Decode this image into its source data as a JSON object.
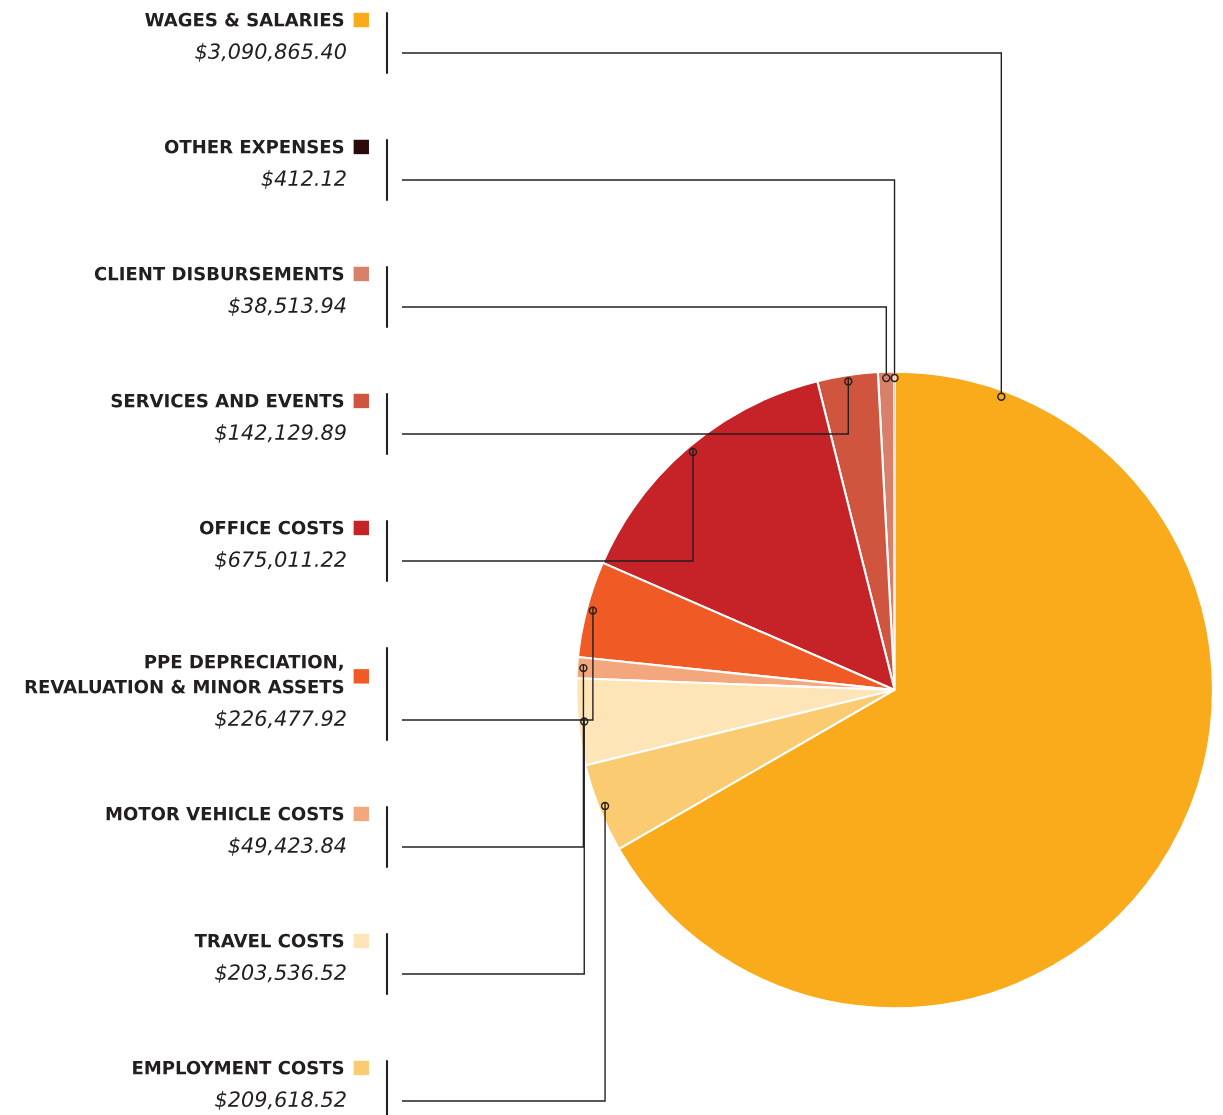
{
  "chart_data": {
    "type": "pie",
    "categories": [
      "WAGES & SALARIES",
      "OTHER EXPENSES",
      "CLIENT DISBURSEMENTS",
      "SERVICES AND EVENTS",
      "OFFICE COSTS",
      "PPE DEPRECIATION,\nREVALUATION & MINOR ASSETS",
      "MOTOR VEHICLE COSTS",
      "TRAVEL COSTS",
      "EMPLOYMENT COSTS"
    ],
    "values": [
      3090865.4,
      412.12,
      38513.94,
      142129.89,
      675011.22,
      226477.92,
      49423.84,
      203536.52,
      209618.52
    ],
    "value_labels": [
      "$3,090,865.40",
      "$412.12",
      "$38,513.94",
      "$142,129.89",
      "$675,011.22",
      "$226,477.92",
      "$49,423.84",
      "$203,536.52",
      "$209,618.52"
    ],
    "colors": [
      "#f9ab1c",
      "#2a0a0a",
      "#d8806a",
      "#d0553f",
      "#c62328",
      "#f05a24",
      "#f4a77c",
      "#fde5b8",
      "#fbcb72"
    ],
    "legend": "left"
  }
}
